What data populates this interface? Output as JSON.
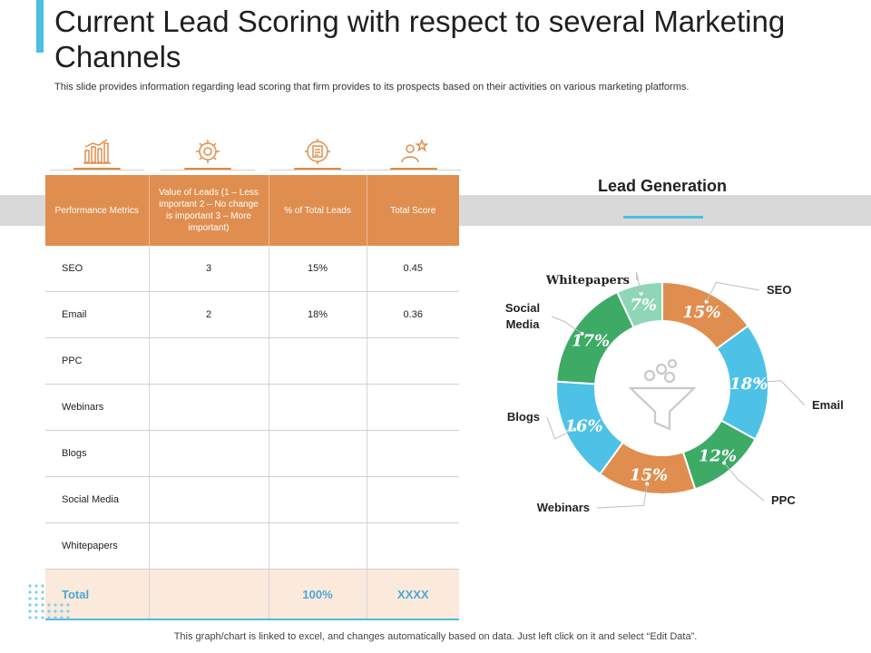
{
  "header": {
    "title": "Current Lead Scoring with respect to several Marketing Channels",
    "subtitle": "This slide provides information regarding lead scoring that firm provides to its prospects based on their activities on various marketing platforms."
  },
  "table": {
    "columns": [
      "Performance Metrics",
      "Value of Leads (1 – Less important 2 – No change is important 3 – More important)",
      "% of Total Leads",
      "Total Score"
    ],
    "rows": [
      [
        "SEO",
        "3",
        "15%",
        "0.45"
      ],
      [
        "Email",
        "2",
        "18%",
        "0.36"
      ],
      [
        "PPC",
        "",
        "",
        ""
      ],
      [
        "Webinars",
        "",
        "",
        ""
      ],
      [
        "Blogs",
        "",
        "",
        ""
      ],
      [
        "Social Media",
        "",
        "",
        ""
      ],
      [
        "Whitepapers",
        "",
        "",
        ""
      ]
    ],
    "total": [
      "Total",
      "",
      "100%",
      "XXXX"
    ]
  },
  "icons": [
    "bar-chart-icon",
    "gear-brain-icon",
    "gear-document-icon",
    "person-star-icon"
  ],
  "colors": {
    "orange": "#e08e4f",
    "blue": "#4ec2e6",
    "green": "#3daa66",
    "light_green": "#8fd6b6",
    "accent": "#4bbfe0"
  },
  "chart_data": {
    "type": "pie",
    "title": "Lead Generation",
    "center_icon": "funnel-icon",
    "slices": [
      {
        "label": "SEO",
        "value": 15,
        "display": "15%",
        "color": "#e08e4f"
      },
      {
        "label": "Email",
        "value": 18,
        "display": "18%",
        "color": "#4ec2e6"
      },
      {
        "label": "PPC",
        "value": 12,
        "display": "12%",
        "color": "#3daa66"
      },
      {
        "label": "Webinars",
        "value": 15,
        "display": "15%",
        "color": "#e08e4f"
      },
      {
        "label": "Blogs",
        "value": 16,
        "display": "16%",
        "color": "#4ec2e6"
      },
      {
        "label": "Social Media",
        "value": 17,
        "display": "17%",
        "color": "#3daa66"
      },
      {
        "label": "Whitepapers",
        "value": 7,
        "display": "7%",
        "color": "#8fd6b6"
      }
    ]
  },
  "footer": "This graph/chart is linked to excel, and changes automatically based on data. Just left click on it and select “Edit Data”."
}
